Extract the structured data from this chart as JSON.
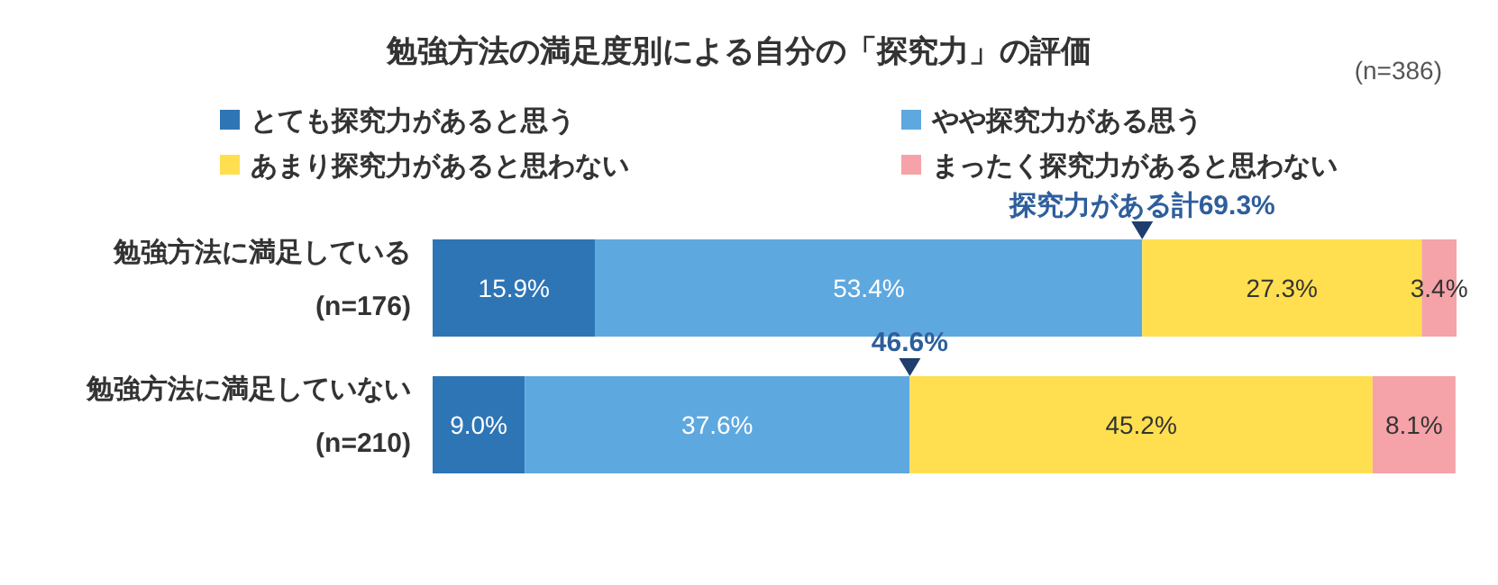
{
  "chart_data": {
    "type": "bar",
    "orientation": "horizontal",
    "stacked": true,
    "title": "勉強方法の満足度別による自分の「探究力」の評価",
    "categories": [
      "勉強方法に満足している\n(n=176)",
      "勉強方法に満足していない\n(n=210)"
    ],
    "xlim": [
      0,
      100
    ],
    "legend": "top",
    "series": [
      {
        "name": "とても探究力があると思う",
        "color": "#2e75b6",
        "values": [
          15.9,
          9.0
        ],
        "value_labels": [
          "15.9%",
          "9.0%"
        ]
      },
      {
        "name": "やや探究力がある思う",
        "color": "#5ea8e0",
        "values": [
          53.4,
          37.6
        ],
        "value_labels": [
          "53.4%",
          "37.6%"
        ]
      },
      {
        "name": "あまり探究力があると思わない",
        "color": "#ffdf4f",
        "values": [
          27.3,
          45.2
        ],
        "value_labels": [
          "27.3%",
          "45.2%"
        ]
      },
      {
        "name": "まったく探究力があると思わない",
        "color": "#f5a3a8",
        "values": [
          3.4,
          8.1
        ],
        "value_labels": [
          "3.4%",
          "8.1%"
        ]
      }
    ],
    "annotations": [
      "(n=386)",
      {
        "text": "探究力がある計69.3%",
        "x": 69.3,
        "y": "勉強方法に満足している\n(n=176)"
      },
      {
        "text": "46.6%",
        "x": 46.6,
        "y": "勉強方法に満足していない\n(n=210)"
      }
    ]
  }
}
